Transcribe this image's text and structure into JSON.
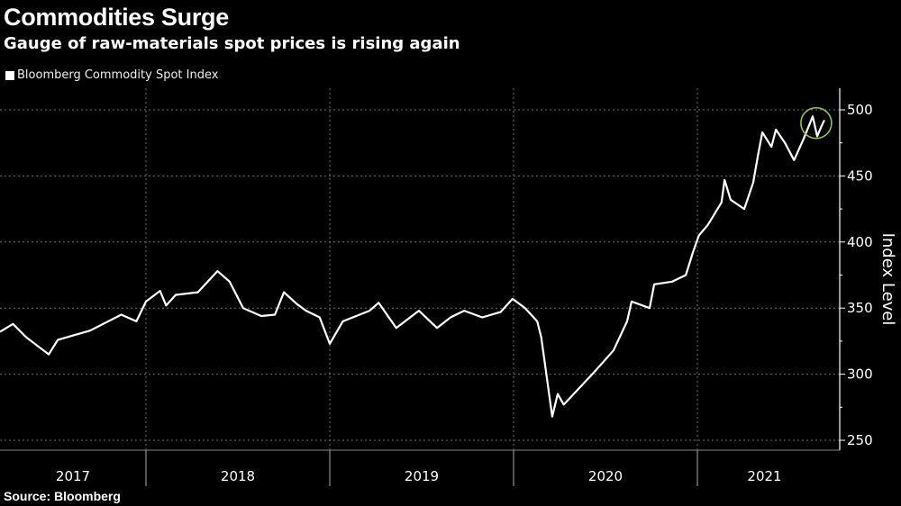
{
  "header": {
    "title": "Commodities Surge",
    "subtitle": "Gauge of raw-materials spot prices is rising again"
  },
  "footer": {
    "source": "Source: Bloomberg"
  },
  "chart_data": {
    "type": "line",
    "title": "Commodities Surge",
    "subtitle": "Gauge of raw-materials spot prices is rising again",
    "xlabel": "",
    "ylabel": "Index Level",
    "y_axis_side": "right",
    "ylim": [
      250,
      510
    ],
    "yticks": [
      250,
      300,
      350,
      400,
      450,
      500
    ],
    "xticks": [
      "2017",
      "2018",
      "2019",
      "2020",
      "2021"
    ],
    "grid": true,
    "legend_placement": "top-left",
    "colors": {
      "background": "#000000",
      "line": "#ffffff",
      "grid": "#6e6e6e",
      "highlight": "#8dc63f"
    },
    "series": [
      {
        "name": "Bloomberg Commodity Spot Index",
        "points": [
          [
            "2017-03-17",
            332
          ],
          [
            "2017-04-12",
            338
          ],
          [
            "2017-05-08",
            328
          ],
          [
            "2017-06-22",
            315
          ],
          [
            "2017-07-10",
            326
          ],
          [
            "2017-09-12",
            333
          ],
          [
            "2017-11-13",
            345
          ],
          [
            "2017-12-13",
            340
          ],
          [
            "2018-01-01",
            355
          ],
          [
            "2018-01-29",
            363
          ],
          [
            "2018-02-10",
            352
          ],
          [
            "2018-03-01",
            360
          ],
          [
            "2018-04-14",
            362
          ],
          [
            "2018-05-23",
            378
          ],
          [
            "2018-06-16",
            370
          ],
          [
            "2018-07-13",
            350
          ],
          [
            "2018-08-18",
            344
          ],
          [
            "2018-09-14",
            345
          ],
          [
            "2018-10-02",
            362
          ],
          [
            "2018-10-28",
            353
          ],
          [
            "2018-11-15",
            348
          ],
          [
            "2018-12-12",
            343
          ],
          [
            "2019-01-01",
            323
          ],
          [
            "2019-01-27",
            340
          ],
          [
            "2019-03-21",
            348
          ],
          [
            "2019-04-08",
            354
          ],
          [
            "2019-05-13",
            335
          ],
          [
            "2019-06-27",
            348
          ],
          [
            "2019-08-02",
            335
          ],
          [
            "2019-08-29",
            343
          ],
          [
            "2019-09-25",
            348
          ],
          [
            "2019-10-31",
            343
          ],
          [
            "2019-12-06",
            347
          ],
          [
            "2019-12-30",
            357
          ],
          [
            "2020-01-24",
            350
          ],
          [
            "2020-02-17",
            340
          ],
          [
            "2020-02-25",
            328
          ],
          [
            "2020-03-18",
            268
          ],
          [
            "2020-03-29",
            285
          ],
          [
            "2020-04-10",
            277
          ],
          [
            "2020-05-07",
            288
          ],
          [
            "2020-06-13",
            303
          ],
          [
            "2020-07-18",
            318
          ],
          [
            "2020-08-14",
            340
          ],
          [
            "2020-08-23",
            355
          ],
          [
            "2020-09-28",
            350
          ],
          [
            "2020-10-07",
            368
          ],
          [
            "2020-11-12",
            370
          ],
          [
            "2020-12-09",
            375
          ],
          [
            "2020-12-23",
            392
          ],
          [
            "2021-01-04",
            405
          ],
          [
            "2021-01-22",
            413
          ],
          [
            "2021-02-18",
            430
          ],
          [
            "2021-02-24",
            447
          ],
          [
            "2021-03-08",
            432
          ],
          [
            "2021-04-04",
            425
          ],
          [
            "2021-04-22",
            445
          ],
          [
            "2021-05-01",
            465
          ],
          [
            "2021-05-10",
            483
          ],
          [
            "2021-05-28",
            472
          ],
          [
            "2021-06-06",
            485
          ],
          [
            "2021-06-24",
            475
          ],
          [
            "2021-07-12",
            462
          ],
          [
            "2021-07-31",
            478
          ],
          [
            "2021-08-18",
            495
          ],
          [
            "2021-08-27",
            480
          ],
          [
            "2021-09-05",
            488
          ],
          [
            "2021-09-10",
            492
          ]
        ]
      }
    ],
    "annotations": [
      {
        "type": "circle",
        "date": "2021-08-25",
        "value": 490
      }
    ]
  }
}
